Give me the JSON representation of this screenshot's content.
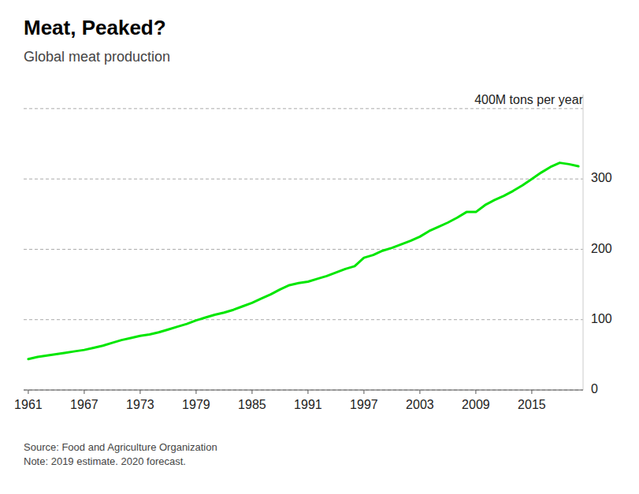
{
  "chart_data": {
    "type": "line",
    "title": "Meat, Peaked?",
    "subtitle": "Global meat production",
    "source": "Source: Food and Agriculture Organization\nNote: 2019 estimate. 2020 forecast.",
    "color": "#00e600",
    "grid": true,
    "x": [
      1961,
      1962,
      1963,
      1964,
      1965,
      1966,
      1967,
      1968,
      1969,
      1970,
      1971,
      1972,
      1973,
      1974,
      1975,
      1976,
      1977,
      1978,
      1979,
      1980,
      1981,
      1982,
      1983,
      1984,
      1985,
      1986,
      1987,
      1988,
      1989,
      1990,
      1991,
      1992,
      1993,
      1994,
      1995,
      1996,
      1997,
      1998,
      1999,
      2000,
      2001,
      2002,
      2003,
      2004,
      2005,
      2006,
      2007,
      2008,
      2009,
      2010,
      2011,
      2012,
      2013,
      2014,
      2015,
      2016,
      2017,
      2018,
      2019,
      2020
    ],
    "values": [
      44,
      47,
      49,
      51,
      53,
      55,
      57,
      60,
      63,
      67,
      71,
      74,
      77,
      79,
      82,
      86,
      90,
      94,
      99,
      103,
      107,
      110,
      114,
      119,
      124,
      130,
      136,
      143,
      149,
      152,
      154,
      158,
      162,
      167,
      172,
      176,
      188,
      192,
      198,
      202,
      207,
      212,
      218,
      226,
      232,
      238,
      245,
      253,
      253,
      263,
      270,
      276,
      283,
      291,
      300,
      309,
      317,
      323,
      321,
      318
    ],
    "xlim": [
      1960.5,
      2020.5
    ],
    "xticks": [
      1961,
      1967,
      1973,
      1979,
      1985,
      1991,
      1997,
      2003,
      2009,
      2015
    ],
    "ylim": [
      0,
      420
    ],
    "yticks": [
      0,
      100,
      200,
      300,
      {
        "value": 400,
        "label": "400M tons per year"
      }
    ]
  }
}
